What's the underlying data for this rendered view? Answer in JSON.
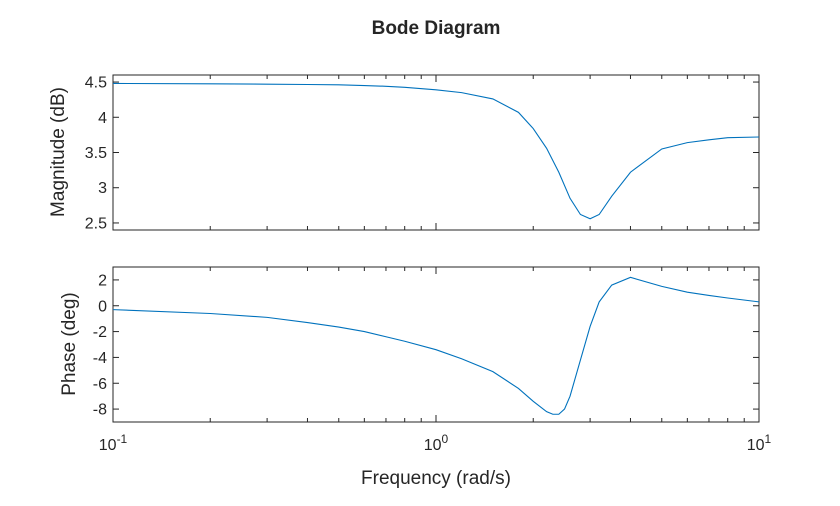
{
  "chart_data": {
    "type": "line",
    "title": "Bode Diagram",
    "xlabel": "Frequency (rad/s)",
    "xscale": "log",
    "xlim": [
      0.1,
      10
    ],
    "x_tick_labels": [
      {
        "base": "10",
        "exp": "-1"
      },
      {
        "base": "10",
        "exp": "0"
      },
      {
        "base": "10",
        "exp": "1"
      }
    ],
    "line_color": "#0072BD",
    "grid": false,
    "legend": "none",
    "magnitude": {
      "ylabel": "Magnitude (dB)",
      "ylim": [
        2.4,
        4.6
      ],
      "yticks": [
        2.5,
        3,
        3.5,
        4,
        4.5
      ],
      "ytick_labels": [
        "2.5",
        "3",
        "3.5",
        "4",
        "4.5"
      ],
      "x": [
        0.1,
        0.2,
        0.3,
        0.4,
        0.5,
        0.6,
        0.7,
        0.8,
        1.0,
        1.2,
        1.5,
        1.8,
        2.0,
        2.2,
        2.4,
        2.6,
        2.8,
        3.0,
        3.2,
        3.5,
        4.0,
        5.0,
        6.0,
        7.0,
        8.0,
        10.0
      ],
      "y": [
        4.48,
        4.475,
        4.47,
        4.465,
        4.46,
        4.45,
        4.44,
        4.425,
        4.39,
        4.35,
        4.26,
        4.07,
        3.84,
        3.56,
        3.22,
        2.85,
        2.62,
        2.56,
        2.62,
        2.88,
        3.22,
        3.55,
        3.64,
        3.68,
        3.71,
        3.72
      ]
    },
    "phase": {
      "ylabel": "Phase (deg)",
      "ylim": [
        -9,
        3
      ],
      "yticks": [
        -8,
        -6,
        -4,
        -2,
        0,
        2
      ],
      "ytick_labels": [
        "-8",
        "-6",
        "-4",
        "-2",
        "0",
        "2"
      ],
      "x": [
        0.1,
        0.2,
        0.3,
        0.4,
        0.5,
        0.6,
        0.7,
        0.8,
        1.0,
        1.2,
        1.5,
        1.8,
        2.0,
        2.2,
        2.3,
        2.4,
        2.5,
        2.6,
        2.8,
        3.0,
        3.2,
        3.5,
        4.0,
        5.0,
        6.0,
        7.0,
        8.0,
        10.0
      ],
      "y": [
        -0.3,
        -0.6,
        -0.9,
        -1.3,
        -1.65,
        -2.0,
        -2.4,
        -2.75,
        -3.4,
        -4.1,
        -5.1,
        -6.4,
        -7.4,
        -8.2,
        -8.4,
        -8.4,
        -8.0,
        -7.0,
        -4.2,
        -1.6,
        0.3,
        1.6,
        2.2,
        1.5,
        1.05,
        0.8,
        0.6,
        0.3
      ]
    }
  }
}
